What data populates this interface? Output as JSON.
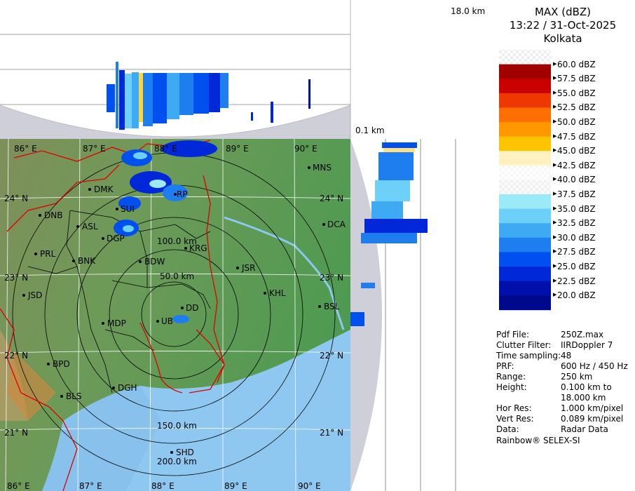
{
  "header": {
    "title": "MAX (dBZ)",
    "datetime": "13:22 / 31-Oct-2025",
    "station": "Kolkata"
  },
  "height_axis": {
    "top_label": "18.0 km",
    "bottom_label": "0.1 km"
  },
  "legend": {
    "labels": [
      "60.0 dBZ",
      "57.5 dBZ",
      "55.0 dBZ",
      "52.5 dBZ",
      "50.0 dBZ",
      "47.5 dBZ",
      "45.0 dBZ",
      "42.5 dBZ",
      "40.0 dBZ",
      "37.5 dBZ",
      "35.0 dBZ",
      "32.5 dBZ",
      "30.0 dBZ",
      "27.5 dBZ",
      "25.0 dBZ",
      "22.5 dBZ",
      "20.0 dBZ"
    ],
    "colors": [
      "checker",
      "#a00000",
      "#c80000",
      "#ee3800",
      "#ff6e00",
      "#ff9800",
      "#ffc400",
      "#fff2c0",
      "#ffffff",
      "#f4f4f4",
      "#9aeaf8",
      "#6cd0f8",
      "#3eaaf4",
      "#1e7ef0",
      "#0050f0",
      "#0028d8",
      "#0010a8",
      "#00088c"
    ]
  },
  "metadata": [
    {
      "key": "Pdf File:",
      "value": "250Z.max"
    },
    {
      "key": "Clutter Filter:",
      "value": "IIRDoppler 7"
    },
    {
      "key": "Time sampling:",
      "value": "48"
    },
    {
      "key": "PRF:",
      "value": "600 Hz / 450 Hz"
    },
    {
      "key": "Range:",
      "value": "250 km"
    },
    {
      "key": "Height:",
      "value": "0.100 km to"
    },
    {
      "key": "",
      "value": "18.000 km"
    },
    {
      "key": "Hor Res:",
      "value": "1.000 km/pixel"
    },
    {
      "key": "Vert Res:",
      "value": "0.089 km/pixel"
    },
    {
      "key": "Data:",
      "value": "Radar Data"
    }
  ],
  "footer": "Rainbow® SELEX-SI",
  "map": {
    "lon_labels": [
      "86° E",
      "87° E",
      "88° E",
      "89° E",
      "90° E"
    ],
    "lat_labels": [
      "24° N",
      "23° N",
      "22° N",
      "21° N"
    ],
    "range_rings": [
      "50.0 km",
      "100.0 km",
      "150.0 km",
      "200.0 km"
    ],
    "cities": [
      "MNS",
      "DMK",
      "RP",
      "DNB",
      "SUI",
      "ASL",
      "DCA",
      "DGP",
      "PRL",
      "KRG",
      "BNK",
      "BDW",
      "JSR",
      "KHL",
      "JSD",
      "DD",
      "UB",
      "BSL",
      "MDP",
      "BPD",
      "DGH",
      "BLS",
      "SHD"
    ]
  }
}
